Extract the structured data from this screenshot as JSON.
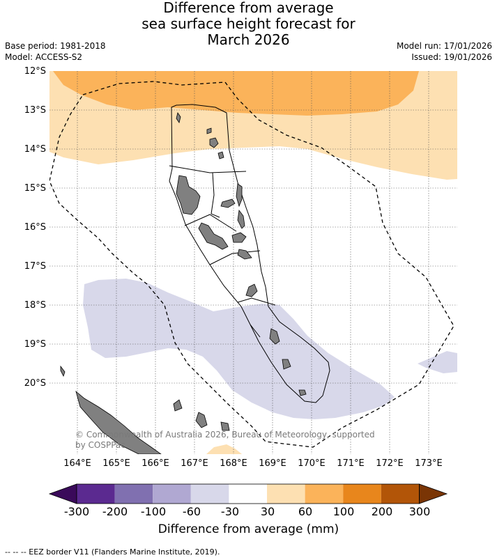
{
  "title": {
    "line1": "Difference from average",
    "line2": "sea surface height forecast for",
    "line3": "March 2026"
  },
  "meta": {
    "base_period": "Base period: 1981-2018",
    "model": "Model: ACCESS-S2",
    "model_run": "Model run: 17/01/2026",
    "issued": "Issued: 19/01/2026"
  },
  "axes": {
    "latitudes": [
      "12°S",
      "13°S",
      "14°S",
      "15°S",
      "16°S",
      "17°S",
      "18°S",
      "19°S",
      "20°S"
    ],
    "longitudes": [
      "164°E",
      "165°E",
      "166°E",
      "167°E",
      "168°E",
      "169°E",
      "170°E",
      "171°E",
      "172°E",
      "173°E"
    ]
  },
  "copyright": {
    "line1": "© Commonwealth of Australia 2026, Bureau of Meteorology, supported",
    "line2": "by COSPPac"
  },
  "colorbar": {
    "labels": [
      "-300",
      "-200",
      "-100",
      "-60",
      "-30",
      "30",
      "60",
      "100",
      "200",
      "300"
    ],
    "colors": [
      "#3a0a5a",
      "#5b2a90",
      "#8070b0",
      "#b0a8d2",
      "#d8d8ea",
      "#ffffff",
      "#fde0b2",
      "#fbb35a",
      "#e8861c",
      "#b25508",
      "#7a3505"
    ],
    "title": "Difference from average (mm)"
  },
  "palette": {
    "anomaly_60_100": "#fbb35a",
    "anomaly_30_60": "#fde0b2",
    "anomaly_neg30_neg60": "#d8d8ea",
    "land": "#808080"
  },
  "footer": "--  --  -- EEZ border V11 (Flanders Marine Institute, 2019)."
}
